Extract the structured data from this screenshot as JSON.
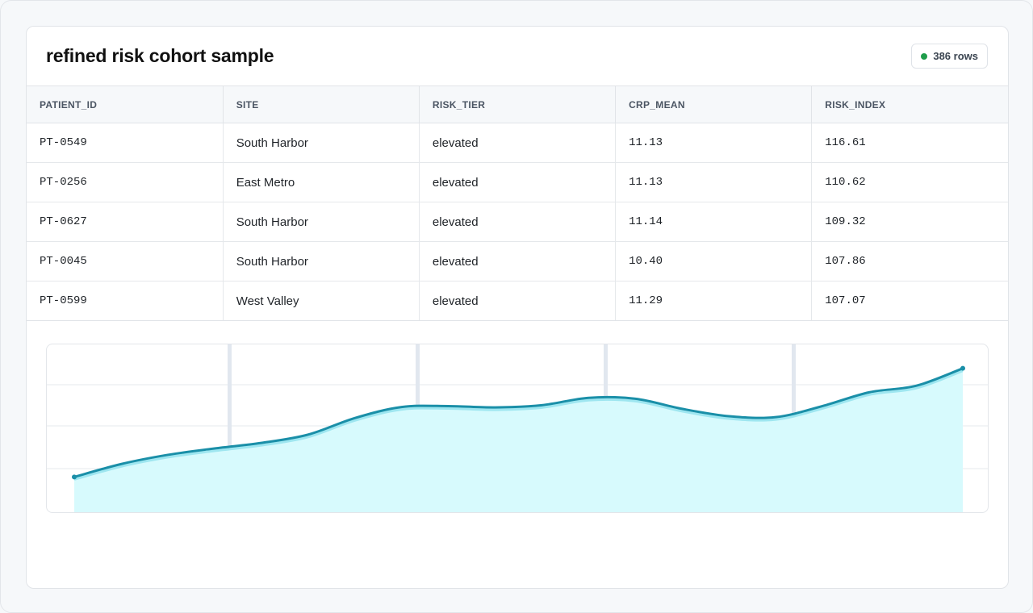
{
  "title": "refined risk cohort sample",
  "badge": {
    "text": "386 rows",
    "dot_color": "#1f9d4b"
  },
  "table": {
    "columns": [
      "PATIENT_ID",
      "SITE",
      "RISK_TIER",
      "CRP_MEAN",
      "RISK_INDEX"
    ],
    "rows": [
      [
        "PT-0549",
        "South Harbor",
        "elevated",
        "11.13",
        "116.61"
      ],
      [
        "PT-0256",
        "East Metro",
        "elevated",
        "11.13",
        "110.62"
      ],
      [
        "PT-0627",
        "South Harbor",
        "elevated",
        "11.14",
        "109.32"
      ],
      [
        "PT-0045",
        "South Harbor",
        "elevated",
        "10.40",
        "107.86"
      ],
      [
        "PT-0599",
        "West Valley",
        "elevated",
        "11.29",
        "107.07"
      ]
    ]
  },
  "chart_data": {
    "type": "area",
    "x": [
      0,
      1,
      2,
      3,
      4,
      5,
      6,
      7,
      8,
      9,
      10,
      11,
      12,
      13,
      14,
      15,
      16,
      17,
      18,
      19
    ],
    "values": [
      1.0,
      1.7,
      2.2,
      2.55,
      2.85,
      3.3,
      4.2,
      4.8,
      4.85,
      4.78,
      4.9,
      5.3,
      5.25,
      4.7,
      4.3,
      4.25,
      4.85,
      5.6,
      5.95,
      6.9
    ],
    "ylim": [
      -1.0,
      8.2
    ],
    "grid": true,
    "line_color": "#1a8fa8",
    "fill_color": "#d7fafd",
    "highlight_color": "#9ee6f0",
    "grid_color": "#e6e9ee",
    "band_color": "#e1e7ef"
  }
}
